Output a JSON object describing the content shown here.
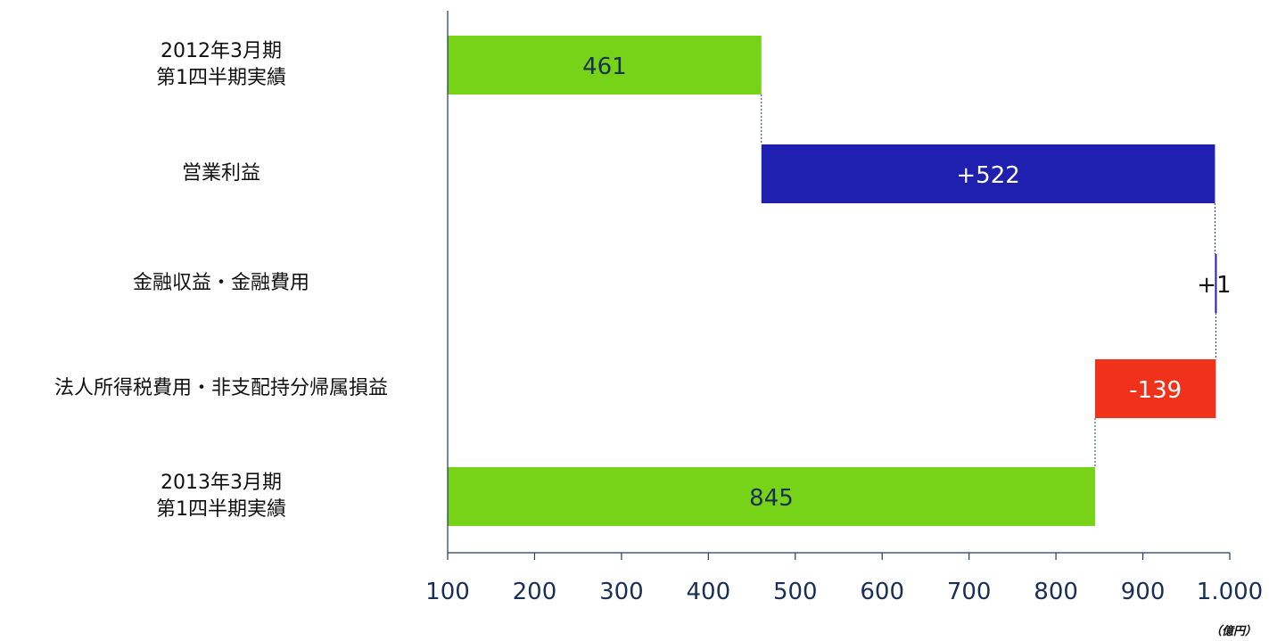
{
  "chart_data": {
    "type": "bar",
    "orientation": "horizontal",
    "subtype": "waterfall",
    "categories": [
      "2012年3月期\n第1四半期実績",
      "営業利益",
      "金融収益・金融費用",
      "法人所得税費用・非支配持分帰属損益",
      "2013年3月期\n第1四半期実績"
    ],
    "values": [
      461,
      522,
      1,
      -139,
      845
    ],
    "value_labels": [
      "461",
      "+522",
      "+1",
      "-139",
      "845"
    ],
    "bar_kinds": [
      "total",
      "increase",
      "increase",
      "decrease",
      "total"
    ],
    "colors": {
      "total": "#77d317",
      "increase": "#2020b0",
      "decrease": "#f0321a",
      "axis": "#1f3a64"
    },
    "xlim": [
      100,
      1000
    ],
    "xticks": [
      "100",
      "200",
      "300",
      "400",
      "500",
      "600",
      "700",
      "800",
      "900",
      "1.000"
    ],
    "unit": "（億円）",
    "grid": false,
    "connectors": true
  }
}
